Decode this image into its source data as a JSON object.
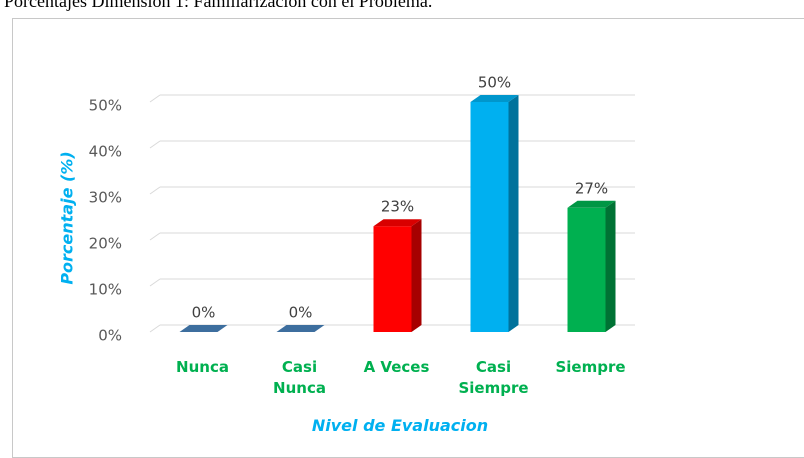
{
  "chart_data": {
    "type": "bar3d",
    "title": "Porcentajes Dimensión 1: Familiarización con el Problema.",
    "y_label": "Porcentaje  (%)",
    "x_label": "Nivel de Evaluacion",
    "categories": [
      "Nunca",
      "Casi Nunca",
      "A Veces",
      "Casi Siempre",
      "Siempre"
    ],
    "values": [
      0,
      0,
      23,
      50,
      27
    ],
    "value_labels": [
      "0%",
      "0%",
      "23%",
      "50%",
      "27%"
    ],
    "colors": [
      "#3d6e9e",
      "#3d6e9e",
      "#ff0000",
      "#00b0f0",
      "#00b050"
    ],
    "ylim": [
      0,
      50
    ],
    "yticks": [
      {
        "value": 0,
        "label": "0%"
      },
      {
        "value": 10,
        "label": "10%"
      },
      {
        "value": 20,
        "label": "20%"
      },
      {
        "value": 30,
        "label": "30%"
      },
      {
        "value": 40,
        "label": "40%"
      },
      {
        "value": 50,
        "label": "50%"
      }
    ],
    "grid": true
  }
}
